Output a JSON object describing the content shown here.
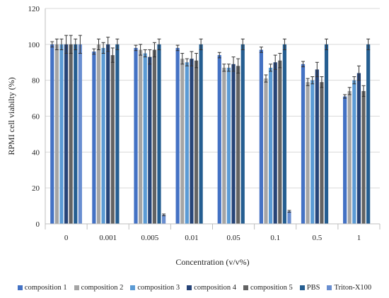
{
  "chart_data": {
    "type": "bar",
    "title": "",
    "xlabel": "Concentration (v/v%)",
    "ylabel": "RPMI cell viabilty (%)",
    "ylim": [
      0,
      120
    ],
    "yticks": [
      0,
      20,
      40,
      60,
      80,
      100,
      120
    ],
    "grid": "horizontal",
    "legend_position": "bottom",
    "categories": [
      "0",
      "0.001",
      "0.005",
      "0.01",
      "0.05",
      "0.1",
      "0.5",
      "1"
    ],
    "series": [
      {
        "name": "composition 1",
        "color": "#4472C4",
        "values": [
          100,
          96,
          98,
          98,
          94,
          97,
          89,
          71
        ],
        "errors": [
          1.5,
          1.5,
          1.5,
          1.5,
          1.5,
          1.5,
          1.5,
          1
        ]
      },
      {
        "name": "composition 2",
        "color": "#A5A5A5",
        "values": [
          100,
          100,
          97,
          92,
          87,
          81,
          79,
          74
        ],
        "errors": [
          3,
          3,
          3,
          3,
          2,
          2,
          2,
          2
        ]
      },
      {
        "name": "composition 3",
        "color": "#5B9BD5",
        "values": [
          100,
          98,
          95,
          90,
          87,
          87,
          80,
          80
        ],
        "errors": [
          3,
          3,
          2,
          2,
          2,
          2,
          2,
          2
        ]
      },
      {
        "name": "composition 4",
        "color": "#264478",
        "values": [
          100,
          100,
          93,
          92,
          89,
          90,
          86,
          84
        ],
        "errors": [
          5,
          4,
          4,
          4,
          4,
          4,
          4,
          4
        ]
      },
      {
        "name": "composition 5",
        "color": "#636363",
        "values": [
          100,
          94,
          97,
          91,
          88,
          91,
          79,
          74
        ],
        "errors": [
          5,
          4,
          4,
          4,
          4,
          4,
          3,
          3
        ]
      },
      {
        "name": "PBS",
        "color": "#255E91",
        "values": [
          100,
          100,
          100,
          100,
          100,
          100,
          100,
          100
        ],
        "errors": [
          3,
          3,
          3,
          3,
          3,
          3,
          3,
          3
        ]
      },
      {
        "name": "Triton-X100",
        "color": "#698ED0",
        "values": [
          100,
          null,
          5,
          null,
          null,
          7,
          null,
          null
        ],
        "errors": [
          5,
          null,
          0.5,
          null,
          null,
          0.5,
          null,
          null
        ]
      }
    ]
  }
}
